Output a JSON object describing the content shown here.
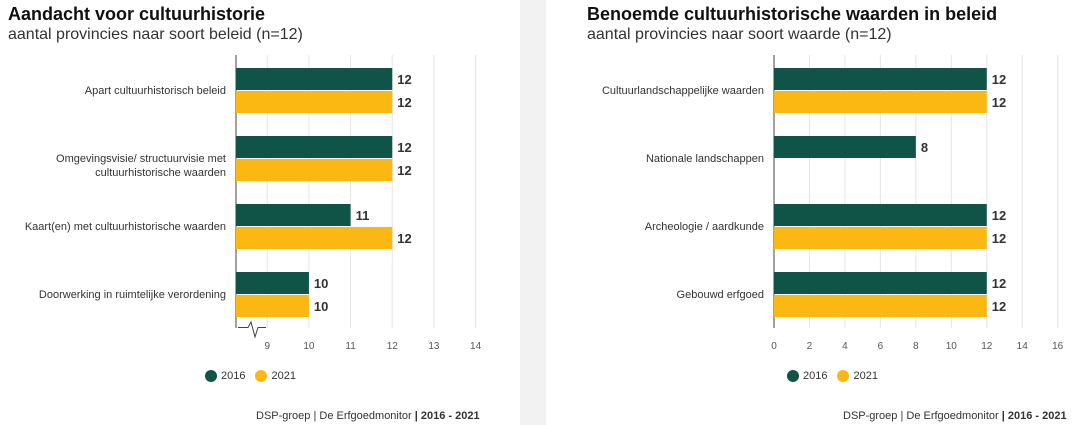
{
  "colors": {
    "series_2016": "#0f5446",
    "series_2021": "#fbb812",
    "grid": "#e5e5e5"
  },
  "chart_data": [
    {
      "type": "bar",
      "orientation": "horizontal",
      "title": "Aandacht voor cultuurhistorie",
      "subtitle": "aantal provincies naar soort beleid (n=12)",
      "categories": [
        "Apart cultuurhistorisch beleid",
        "Omgevingsvisie/ structuurvisie met cultuurhistorische waarden",
        "Kaart(en) met cultuurhistorische waarden",
        "Doorwerking in ruimtelijke verordening"
      ],
      "series": [
        {
          "name": "2016",
          "values": [
            12,
            12,
            11,
            10
          ]
        },
        {
          "name": "2021",
          "values": [
            12,
            12,
            12,
            10
          ]
        }
      ],
      "xlim": [
        8.25,
        14.25
      ],
      "xticks": [
        "9",
        "10",
        "11",
        "12",
        "13",
        "14"
      ],
      "axis_break": true,
      "grid": true,
      "legend": "bottom-left",
      "source": {
        "text": "DSP-groep | De Erfgoedmonitor ",
        "years": "| 2016 - 2021"
      }
    },
    {
      "type": "bar",
      "orientation": "horizontal",
      "title": "Benoemde cultuurhistorische waarden in beleid",
      "subtitle": "aantal provincies naar soort waarde (n=12)",
      "categories": [
        "Cultuurlandschappelijke waarden",
        "Nationale landschappen",
        "Archeologie / aardkunde",
        "Gebouwd erfgoed"
      ],
      "series": [
        {
          "name": "2016",
          "values": [
            12,
            8,
            12,
            12
          ]
        },
        {
          "name": "2021",
          "values": [
            12,
            null,
            12,
            12
          ]
        }
      ],
      "xlim": [
        0,
        16.3
      ],
      "xticks": [
        "0",
        "2",
        "4",
        "6",
        "8",
        "10",
        "12",
        "14",
        "16"
      ],
      "axis_break": false,
      "grid": true,
      "legend": "bottom-left",
      "source": {
        "text": "DSP-groep | De Erfgoedmonitor ",
        "years": "| 2016 - 2021"
      }
    }
  ]
}
